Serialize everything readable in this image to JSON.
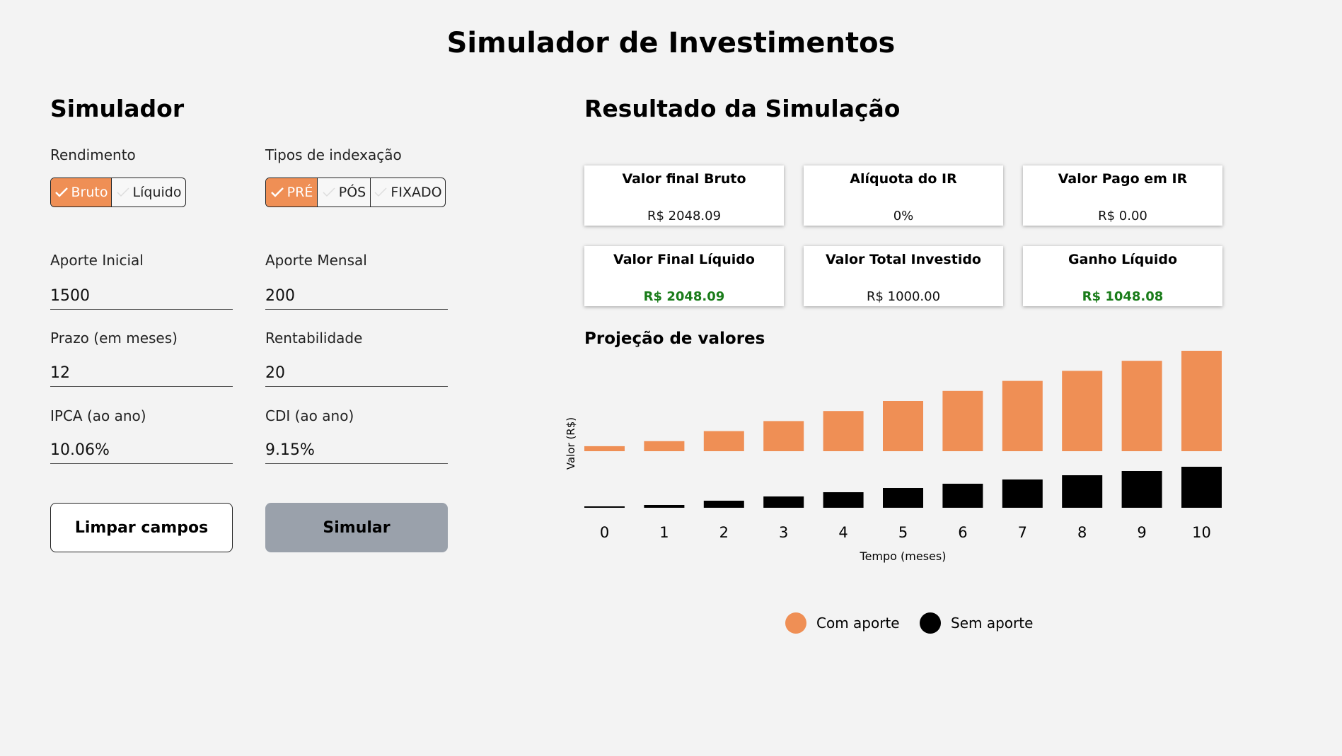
{
  "page_title": "Simulador de Investimentos",
  "simulator": {
    "title": "Simulador",
    "rendimento": {
      "label": "Rendimento",
      "options": [
        "Bruto",
        "Líquido"
      ],
      "selected": "Bruto"
    },
    "indexacao": {
      "label": "Tipos de indexação",
      "options": [
        "PRÉ",
        "PÓS",
        "FIXADO"
      ],
      "selected": "PRÉ"
    },
    "fields": {
      "aporte_inicial": {
        "label": "Aporte Inicial",
        "value": "1500"
      },
      "aporte_mensal": {
        "label": "Aporte Mensal",
        "value": "200"
      },
      "prazo": {
        "label": "Prazo (em meses)",
        "value": "12"
      },
      "rentabilidade": {
        "label": "Rentabilidade",
        "value": "20"
      },
      "ipca": {
        "label": "IPCA (ao ano)",
        "value": "10.06%"
      },
      "cdi": {
        "label": "CDI (ao ano)",
        "value": "9.15%"
      }
    },
    "clear_label": "Limpar campos",
    "simulate_label": "Simular"
  },
  "results": {
    "title": "Resultado da Simulação",
    "cards": [
      {
        "title": "Valor final Bruto",
        "value": "R$ 2048.09",
        "highlight": false
      },
      {
        "title": "Alíquota do IR",
        "value": "0%",
        "highlight": false
      },
      {
        "title": "Valor Pago em IR",
        "value": "R$ 0.00",
        "highlight": false
      },
      {
        "title": "Valor Final Líquido",
        "value": "R$ 2048.09",
        "highlight": true
      },
      {
        "title": "Valor Total Investido",
        "value": "R$ 1000.00",
        "highlight": false
      },
      {
        "title": "Ganho Líquido",
        "value": "R$ 1048.08",
        "highlight": true
      }
    ]
  },
  "colors": {
    "accent": "#ef8f55",
    "secondary": "#000000",
    "positive": "#1a7c1a",
    "button_gray": "#9aa1ab"
  },
  "chart_data": {
    "type": "bar",
    "title": "Projeção de valores",
    "xlabel": "Tempo (meses)",
    "ylabel": "Valor (R$)",
    "categories": [
      "0",
      "1",
      "2",
      "3",
      "4",
      "5",
      "6",
      "7",
      "8",
      "9",
      "10"
    ],
    "series": [
      {
        "name": "Com aporte",
        "color": "#ef8f55",
        "values": [
          100,
          200,
          400,
          600,
          800,
          1000,
          1200,
          1400,
          1600,
          1800,
          2000
        ]
      },
      {
        "name": "Sem aporte",
        "color": "#000000",
        "values": [
          50,
          100,
          250,
          400,
          550,
          700,
          850,
          1000,
          1150,
          1300,
          1450
        ]
      }
    ],
    "grid": false,
    "legend": "bottom"
  }
}
